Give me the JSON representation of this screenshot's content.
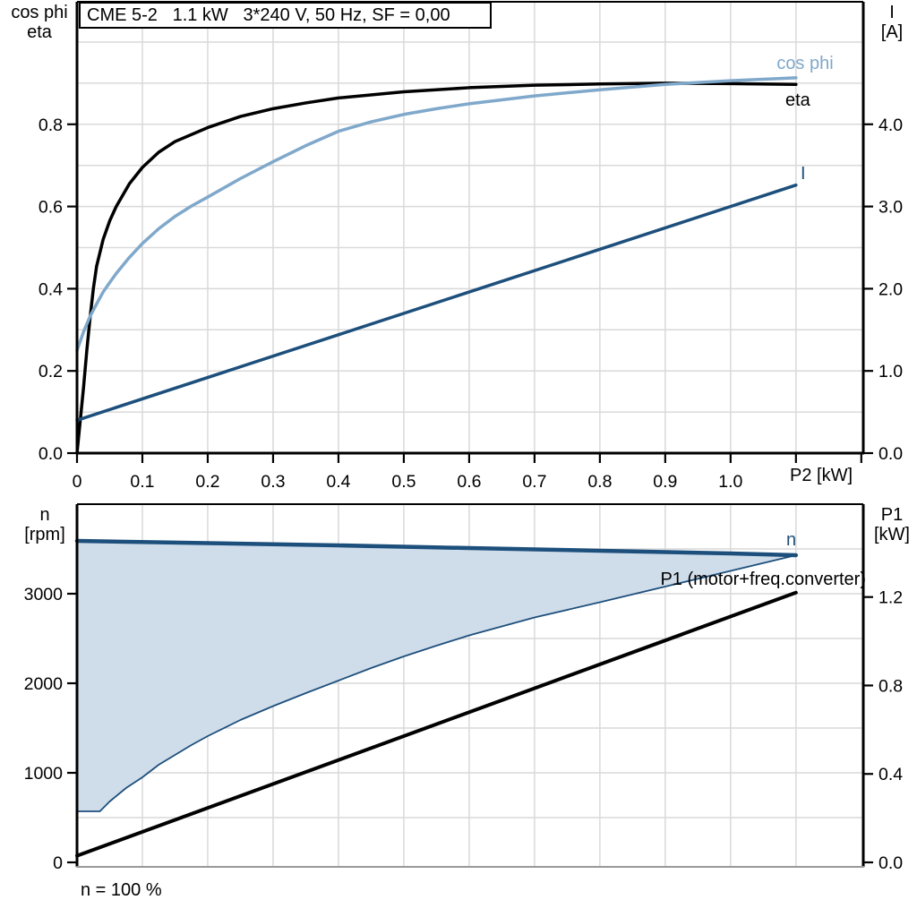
{
  "title_box": "CME 5-2   1.1 kW   3*240 V, 50 Hz, SF = 0,00",
  "footnote": "n = 100 %",
  "colors": {
    "eta": "#000000",
    "cos_phi": "#7FA8CB",
    "current": "#1D4F7C",
    "speed": "#1D4F7C",
    "speed_range_fill": "#CFDCEA",
    "p1_line": "#000000",
    "grid": "#D9D9D9",
    "bottom_baseline": "#999999"
  },
  "chart_data": [
    {
      "type": "line",
      "position": "top",
      "title": "CME 5-2   1.1 kW   3*240 V, 50 Hz, SF = 0,00",
      "x_axis": {
        "label": "P2 [kW]",
        "range": [
          0,
          1.203
        ],
        "grid_step": 0.1,
        "tick_values": [
          0,
          0.1,
          0.2,
          0.3,
          0.4,
          0.5,
          0.6,
          0.7,
          0.8,
          0.9,
          1.0
        ],
        "tick_labels": [
          "0",
          "0.1",
          "0.2",
          "0.3",
          "0.4",
          "0.5",
          "0.6",
          "0.7",
          "0.8",
          "0.9",
          "1.0"
        ],
        "tick_mark_values": [
          0,
          0.1,
          0.2,
          0.3,
          0.4,
          0.5,
          0.6,
          0.7,
          0.8,
          0.9,
          1.0,
          1.1,
          1.2
        ]
      },
      "left_axis": {
        "label_lines": [
          "cos phi",
          "eta"
        ],
        "range": [
          0,
          1.098
        ],
        "grid_step": 0.1,
        "tick_values": [
          0,
          0.2,
          0.4,
          0.6,
          0.8
        ],
        "tick_labels": [
          "0.0",
          "0.2",
          "0.4",
          "0.6",
          "0.8"
        ]
      },
      "right_axis": {
        "label_lines": [
          "I",
          "[A]"
        ],
        "range": [
          0,
          5.49
        ],
        "tick_values": [
          0,
          1,
          2,
          3,
          4
        ],
        "tick_labels": [
          "0.0",
          "1.0",
          "2.0",
          "3.0",
          "4.0"
        ]
      },
      "series": [
        {
          "name": "eta",
          "label": "eta",
          "axis": "left",
          "color": "#000000",
          "stroke_width": 3.5,
          "points": [
            [
              0,
              0
            ],
            [
              0.005,
              0.08
            ],
            [
              0.01,
              0.16
            ],
            [
              0.015,
              0.25
            ],
            [
              0.02,
              0.33
            ],
            [
              0.025,
              0.4
            ],
            [
              0.03,
              0.455
            ],
            [
              0.04,
              0.52
            ],
            [
              0.05,
              0.565
            ],
            [
              0.06,
              0.6
            ],
            [
              0.08,
              0.655
            ],
            [
              0.1,
              0.695
            ],
            [
              0.125,
              0.732
            ],
            [
              0.15,
              0.758
            ],
            [
              0.2,
              0.792
            ],
            [
              0.25,
              0.819
            ],
            [
              0.3,
              0.838
            ],
            [
              0.35,
              0.852
            ],
            [
              0.4,
              0.864
            ],
            [
              0.5,
              0.879
            ],
            [
              0.6,
              0.889
            ],
            [
              0.7,
              0.895
            ],
            [
              0.8,
              0.898
            ],
            [
              0.9,
              0.9
            ],
            [
              1.0,
              0.899
            ],
            [
              1.1,
              0.897
            ]
          ]
        },
        {
          "name": "cos phi",
          "label": "cos phi",
          "axis": "left",
          "color": "#7FA8CB",
          "stroke_width": 3.5,
          "points": [
            [
              0,
              0.25
            ],
            [
              0.01,
              0.295
            ],
            [
              0.02,
              0.333
            ],
            [
              0.03,
              0.363
            ],
            [
              0.04,
              0.392
            ],
            [
              0.05,
              0.415
            ],
            [
              0.06,
              0.437
            ],
            [
              0.08,
              0.476
            ],
            [
              0.1,
              0.51
            ],
            [
              0.125,
              0.546
            ],
            [
              0.15,
              0.576
            ],
            [
              0.175,
              0.601
            ],
            [
              0.2,
              0.623
            ],
            [
              0.25,
              0.668
            ],
            [
              0.3,
              0.709
            ],
            [
              0.35,
              0.748
            ],
            [
              0.4,
              0.783
            ],
            [
              0.45,
              0.806
            ],
            [
              0.5,
              0.824
            ],
            [
              0.55,
              0.838
            ],
            [
              0.6,
              0.85
            ],
            [
              0.7,
              0.869
            ],
            [
              0.8,
              0.884
            ],
            [
              0.9,
              0.897
            ],
            [
              1.0,
              0.906
            ],
            [
              1.1,
              0.913
            ]
          ]
        },
        {
          "name": "I",
          "label": "I",
          "axis": "right",
          "color": "#1D4F7C",
          "stroke_width": 3.5,
          "points": [
            [
              0,
              0.4
            ],
            [
              1.1,
              3.26
            ]
          ]
        }
      ]
    },
    {
      "type": "line",
      "position": "bottom",
      "x_axis": {
        "label": "",
        "range": [
          0,
          1.203
        ],
        "grid_step": 0.1,
        "tick_values": [],
        "tick_labels": [],
        "tick_mark_values": []
      },
      "left_axis": {
        "label_lines": [
          "n",
          "[rpm]"
        ],
        "range": [
          0,
          4000
        ],
        "grid_step": 500,
        "tick_values": [
          0,
          1000,
          2000,
          3000
        ],
        "tick_labels": [
          "0",
          "1000",
          "2000",
          "3000"
        ]
      },
      "right_axis": {
        "label_lines": [
          "P1",
          "[kW]"
        ],
        "range": [
          0,
          1.62
        ],
        "tick_values": [
          0,
          0.4,
          0.8,
          1.2
        ],
        "tick_labels": [
          "0.0",
          "0.4",
          "0.8",
          "1.2"
        ]
      },
      "series": [
        {
          "name": "n",
          "label": "n",
          "axis": "left",
          "color": "#1D4F7C",
          "stroke_width": 4.5,
          "points": [
            [
              0,
              3590
            ],
            [
              0.2,
              3565
            ],
            [
              0.4,
              3540
            ],
            [
              0.6,
              3510
            ],
            [
              0.8,
              3480
            ],
            [
              1.0,
              3450
            ],
            [
              1.1,
              3430
            ]
          ]
        },
        {
          "name": "speed-range-lower-bound",
          "label": "",
          "axis": "left",
          "color": "#1D4F7C",
          "stroke_width": 1.8,
          "area_fill": "#CFDCEA",
          "area_pair": "n",
          "points": [
            [
              0,
              570
            ],
            [
              0.035,
              570
            ],
            [
              0.05,
              680
            ],
            [
              0.075,
              830
            ],
            [
              0.1,
              950
            ],
            [
              0.125,
              1090
            ],
            [
              0.15,
              1200
            ],
            [
              0.175,
              1310
            ],
            [
              0.2,
              1410
            ],
            [
              0.25,
              1590
            ],
            [
              0.3,
              1745
            ],
            [
              0.35,
              1890
            ],
            [
              0.4,
              2030
            ],
            [
              0.45,
              2170
            ],
            [
              0.5,
              2300
            ],
            [
              0.55,
              2420
            ],
            [
              0.6,
              2535
            ],
            [
              0.7,
              2735
            ],
            [
              0.8,
              2905
            ],
            [
              0.9,
              3080
            ],
            [
              1.0,
              3255
            ],
            [
              1.1,
              3430
            ]
          ]
        },
        {
          "name": "P1",
          "label": "P1 (motor+freq.converter)",
          "axis": "right",
          "color": "#000000",
          "stroke_width": 4,
          "points": [
            [
              0,
              0.03
            ],
            [
              1.1,
              1.22
            ]
          ]
        }
      ]
    }
  ],
  "curve_labels": {
    "cos_phi": "cos phi",
    "eta": "eta",
    "current": "I",
    "speed": "n",
    "p1": "P1 (motor+freq.converter)"
  },
  "axis_corner_labels": {
    "top_left_1": "cos phi",
    "top_left_2": "eta",
    "top_right_1": "I",
    "top_right_2": "[A]",
    "x_label": "P2 [kW]",
    "bottom_left_1": "n",
    "bottom_left_2": "[rpm]",
    "bottom_right_1": "P1",
    "bottom_right_2": "[kW]"
  }
}
